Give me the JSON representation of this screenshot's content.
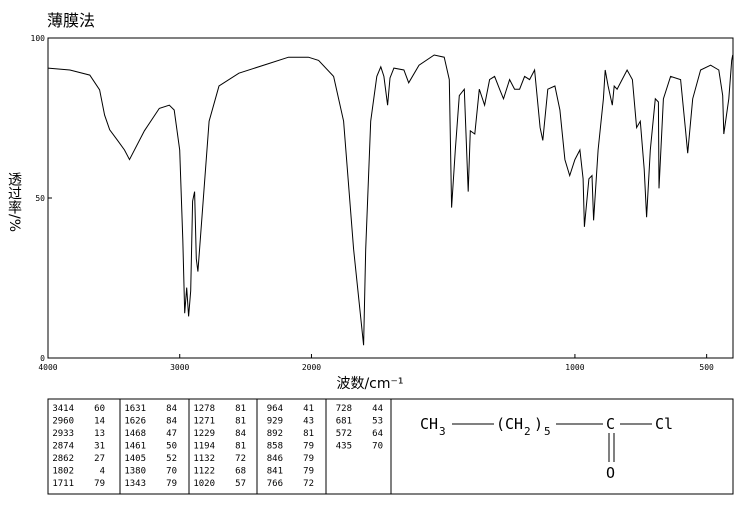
{
  "chart_data": {
    "type": "line",
    "title": "薄膜法",
    "xlabel": "波数/cm⁻¹",
    "ylabel": "透过率/%",
    "xlim": [
      4000,
      400
    ],
    "ylim": [
      0,
      100
    ],
    "xscale_break": 2000,
    "xticks": [
      4000,
      3000,
      2000,
      1000,
      500
    ],
    "yticks": [
      0,
      50,
      100
    ],
    "color": "#000000",
    "x": [
      4000,
      3834,
      3683,
      3608,
      3570,
      3532,
      3472,
      3419,
      3381,
      3268,
      3155,
      3079,
      3042,
      3000,
      2977,
      2962,
      2947,
      2933,
      2917,
      2902,
      2887,
      2874,
      2862,
      2777,
      2702,
      2551,
      2325,
      2174,
      2023,
      1973,
      1916,
      1878,
      1840,
      1802,
      1794,
      1775,
      1752,
      1737,
      1725,
      1711,
      1702,
      1687,
      1649,
      1631,
      1592,
      1534,
      1496,
      1477,
      1468,
      1454,
      1439,
      1420,
      1405,
      1397,
      1380,
      1363,
      1343,
      1324,
      1305,
      1286,
      1271,
      1248,
      1229,
      1210,
      1191,
      1172,
      1153,
      1132,
      1122,
      1103,
      1076,
      1057,
      1038,
      1020,
      1000,
      981,
      969,
      964,
      947,
      935,
      929,
      912,
      892,
      885,
      874,
      858,
      851,
      840,
      821,
      802,
      782,
      766,
      752,
      737,
      728,
      714,
      695,
      683,
      681,
      664,
      637,
      599,
      580,
      572,
      553,
      523,
      485,
      454,
      439,
      435,
      416,
      405,
      401
    ],
    "values": [
      90.6,
      90,
      88.4,
      83.8,
      75.9,
      71.3,
      68,
      65,
      62,
      71,
      78,
      79,
      77.5,
      65,
      37,
      14,
      22,
      13,
      21,
      49,
      52,
      31,
      27,
      74,
      85,
      89,
      92,
      94,
      94,
      93,
      88,
      74,
      34,
      4,
      34,
      74,
      88,
      91,
      88,
      79,
      87.5,
      90.6,
      90,
      86,
      91.5,
      94.7,
      94,
      87,
      47,
      65,
      82,
      84,
      52,
      71,
      70,
      84,
      79,
      87,
      88,
      84,
      81,
      87,
      84,
      84,
      88,
      87,
      90,
      72,
      68,
      84,
      85,
      77.5,
      62,
      57,
      62,
      65,
      56,
      41,
      56,
      57,
      43,
      65,
      81,
      90,
      85,
      79,
      85,
      84,
      87,
      90,
      87,
      72,
      74,
      59,
      44,
      65,
      81,
      80,
      53,
      81,
      88,
      87,
      71,
      64,
      81,
      90,
      91.5,
      90,
      82,
      70,
      81,
      93,
      94.7
    ]
  },
  "peak_table": {
    "columns": [
      [
        [
          3414,
          60
        ],
        [
          2960,
          14
        ],
        [
          2933,
          13
        ],
        [
          2874,
          31
        ],
        [
          2862,
          27
        ],
        [
          1802,
          4
        ],
        [
          1711,
          79
        ]
      ],
      [
        [
          1631,
          84
        ],
        [
          1626,
          84
        ],
        [
          1468,
          47
        ],
        [
          1461,
          50
        ],
        [
          1405,
          52
        ],
        [
          1380,
          70
        ],
        [
          1343,
          79
        ]
      ],
      [
        [
          1278,
          81
        ],
        [
          1271,
          81
        ],
        [
          1229,
          84
        ],
        [
          1194,
          81
        ],
        [
          1132,
          72
        ],
        [
          1122,
          68
        ],
        [
          1020,
          57
        ]
      ],
      [
        [
          964,
          41
        ],
        [
          929,
          43
        ],
        [
          892,
          81
        ],
        [
          858,
          79
        ],
        [
          846,
          79
        ],
        [
          841,
          79
        ],
        [
          766,
          72
        ]
      ],
      [
        [
          728,
          44
        ],
        [
          681,
          53
        ],
        [
          572,
          64
        ],
        [
          435,
          70
        ]
      ]
    ]
  },
  "structure": {
    "ch": "CH",
    "sub3": "3",
    "open": "(CH",
    "sub2": "2",
    "close": ")",
    "sub5": "5",
    "c": "C",
    "cl": "Cl",
    "o": "O"
  }
}
